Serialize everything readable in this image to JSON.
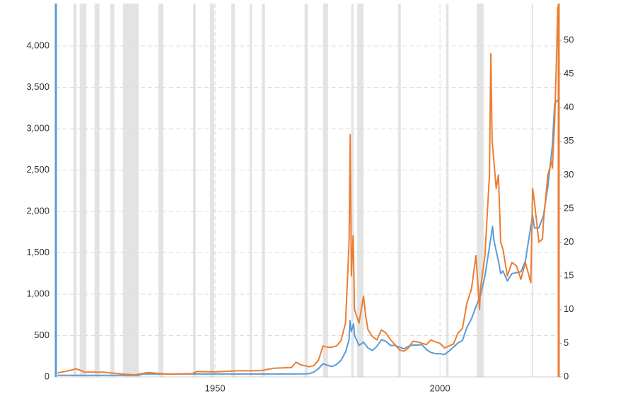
{
  "chart_data": {
    "type": "line",
    "xlim": [
      1914.6,
      2026.4
    ],
    "xticks": [
      1950,
      2000
    ],
    "ylim": [
      0,
      4513
    ],
    "yticks": [
      0,
      500,
      {
        "value": 1000,
        "label": "1,000"
      },
      {
        "value": 1500,
        "label": "1,500"
      },
      {
        "value": 2000,
        "label": "2,000"
      },
      {
        "value": 2500,
        "label": "2,500"
      },
      {
        "value": 3000,
        "label": "3,000"
      },
      {
        "value": 3500,
        "label": "3,500"
      },
      {
        "value": 4000,
        "label": "4,000"
      }
    ],
    "y2lim": [
      0,
      55.46
    ],
    "y2ticks": [
      0,
      5,
      10,
      15,
      20,
      25,
      30,
      35,
      40,
      45,
      50
    ],
    "grid": true,
    "shade_color": "#e3e3e3",
    "recessions": [
      [
        1918.5,
        1919.2
      ],
      [
        1919.9,
        1921.4
      ],
      [
        1923.2,
        1924.3
      ],
      [
        1926.7,
        1927.6
      ],
      [
        1929.5,
        1933.0
      ],
      [
        1937.4,
        1938.5
      ],
      [
        1945.1,
        1945.7
      ],
      [
        1948.9,
        1949.8
      ],
      [
        1953.6,
        1954.4
      ],
      [
        1957.7,
        1958.2
      ],
      [
        1960.4,
        1961.1
      ],
      [
        1969.9,
        1970.6
      ],
      [
        1974.0,
        1975.1
      ],
      [
        1980.3,
        1980.8
      ],
      [
        1981.6,
        1983.0
      ],
      [
        1990.7,
        1991.3
      ],
      [
        2001.4,
        2001.9
      ],
      [
        2008.2,
        2009.7
      ],
      [
        2020.4,
        2020.7
      ]
    ],
    "series": [
      {
        "color": "#5b9bd5",
        "axis": "y",
        "x": [
          1915,
          1933,
          1934,
          1970,
          1971,
          1972,
          1973,
          1974,
          1975,
          1976,
          1977,
          1978,
          1979,
          1979.8,
          1980.0,
          1980.3,
          1980.8,
          1981,
          1982,
          1983,
          1984,
          1985,
          1986,
          1987,
          1988,
          1989,
          1990,
          1991,
          1992,
          1993,
          1994,
          1995,
          1996,
          1997,
          1998,
          1999,
          2000,
          2001,
          2002,
          2003,
          2004,
          2005,
          2006,
          2007,
          2008,
          2009,
          2010,
          2011,
          2011.7,
          2012,
          2013,
          2013.5,
          2014,
          2015,
          2016,
          2017,
          2018,
          2019,
          2020,
          2020.6,
          2021,
          2022,
          2023,
          2024,
          2024.8,
          2025,
          2025.5,
          2026.2
        ],
        "values": [
          20,
          20,
          35,
          36,
          40,
          60,
          100,
          160,
          140,
          125,
          150,
          200,
          300,
          450,
          680,
          550,
          640,
          500,
          380,
          420,
          350,
          320,
          370,
          450,
          430,
          380,
          380,
          360,
          340,
          370,
          385,
          385,
          390,
          330,
          295,
          280,
          280,
          270,
          310,
          360,
          410,
          440,
          600,
          700,
          850,
          980,
          1220,
          1570,
          1820,
          1650,
          1400,
          1250,
          1280,
          1160,
          1250,
          1260,
          1270,
          1400,
          1750,
          1950,
          1800,
          1800,
          1950,
          2300,
          2700,
          2800,
          3300,
          3350
        ]
      },
      {
        "color": "#ed7d31",
        "axis": "y2",
        "x": [
          1915,
          1918,
          1919,
          1920,
          1921,
          1925,
          1930,
          1932,
          1935,
          1940,
          1945,
          1946,
          1950,
          1955,
          1960,
          1963,
          1967,
          1968,
          1969,
          1971,
          1972,
          1973,
          1974,
          1975,
          1976,
          1977,
          1978,
          1979,
          1979.8,
          1980.05,
          1980.3,
          1980.7,
          1981,
          1982,
          1983,
          1983.5,
          1984,
          1985,
          1986,
          1987,
          1988,
          1989,
          1990,
          1991,
          1992,
          1993,
          1994,
          1995,
          1996,
          1997,
          1998,
          1999,
          2000,
          2001,
          2002,
          2003,
          2004,
          2005,
          2006,
          2007,
          2008,
          2008.8,
          2009,
          2010,
          2011,
          2011.3,
          2011.6,
          2012,
          2012.5,
          2013,
          2013.5,
          2014,
          2015,
          2016,
          2017,
          2018,
          2019,
          2020.2,
          2020.6,
          2021,
          2022,
          2022.8,
          2023,
          2024,
          2024.8,
          2025,
          2025.5,
          2025.9,
          2026.2
        ],
        "values": [
          0.6,
          1.0,
          1.2,
          1.0,
          0.7,
          0.7,
          0.4,
          0.3,
          0.65,
          0.4,
          0.5,
          0.8,
          0.75,
          0.9,
          0.91,
          1.28,
          1.4,
          2.2,
          1.8,
          1.5,
          1.7,
          2.5,
          4.6,
          4.4,
          4.4,
          4.6,
          5.4,
          8,
          20,
          36,
          15,
          21,
          10,
          8,
          12,
          9,
          7,
          6,
          5.5,
          7,
          6.5,
          5.5,
          4.8,
          4,
          3.8,
          4.3,
          5.3,
          5.2,
          5,
          4.8,
          5.5,
          5.2,
          5,
          4.3,
          4.6,
          4.9,
          6.5,
          7.2,
          11,
          13,
          18,
          10,
          13,
          18,
          30,
          48,
          35,
          32,
          28,
          30,
          20,
          19,
          15,
          17,
          16.5,
          14.5,
          17,
          14,
          28,
          26,
          20,
          20.5,
          23,
          30,
          32,
          31,
          38,
          47,
          55
        ]
      }
    ]
  }
}
